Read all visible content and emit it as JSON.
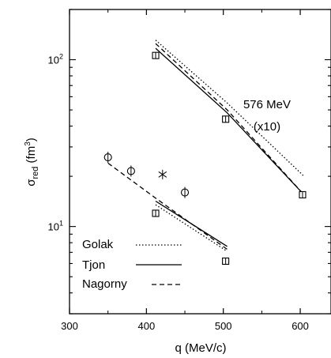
{
  "chart_data": {
    "type": "line",
    "title": "",
    "xlabel": "q (MeV/c)",
    "ylabel_main": "σ",
    "ylabel_sub": "red",
    "ylabel_unit": " (fm",
    "ylabel_power": "3",
    "ylabel_close": ")",
    "x_scale": "linear",
    "y_scale": "log",
    "xlim": [
      300,
      640
    ],
    "ylim": [
      3,
      200
    ],
    "x_ticks": [
      300,
      400,
      500,
      600
    ],
    "x_tick_labels": [
      "300",
      "400",
      "500",
      "600"
    ],
    "y_major_ticks": [
      10,
      100
    ],
    "y_tick_base": [
      "10",
      "10"
    ],
    "y_tick_exp": [
      "1",
      "2"
    ],
    "annotations": [
      "576 MeV",
      "(x10)"
    ],
    "grid": false,
    "legend_position": "bottom-left",
    "legend": [
      {
        "name": "Golak",
        "style": "dotted"
      },
      {
        "name": "Tjon",
        "style": "solid"
      },
      {
        "name": "Nagorny",
        "style": "dashed"
      }
    ],
    "series": [
      {
        "name": "Golak",
        "style": "dotted",
        "x": [
          412,
          505,
          605
        ],
        "y": [
          131,
          55,
          20
        ]
      },
      {
        "name": "Tjon",
        "style": "solid",
        "x": [
          412,
          505,
          605
        ],
        "y": [
          117,
          48,
          15.5
        ]
      },
      {
        "name": "Nagorny",
        "style": "dashed",
        "x": [
          412,
          505,
          605
        ],
        "y": [
          125,
          50,
          15.5
        ]
      },
      {
        "name": "Golak",
        "style": "dotted",
        "x": [
          412,
          505
        ],
        "y": [
          13.5,
          7.1
        ]
      },
      {
        "name": "Tjon",
        "style": "solid",
        "x": [
          412,
          505
        ],
        "y": [
          14.2,
          7.6
        ]
      },
      {
        "name": "Nagorny",
        "style": "dashed",
        "x": [
          350,
          412,
          505
        ],
        "y": [
          24,
          14.8,
          7.3
        ]
      }
    ],
    "points": [
      {
        "marker": "square",
        "x": [
          412,
          503,
          603
        ],
        "y": [
          106,
          44,
          15.5
        ]
      },
      {
        "marker": "square",
        "x": [
          412,
          503
        ],
        "y": [
          12,
          6.2
        ]
      },
      {
        "marker": "circle-bar",
        "x": [
          350,
          380,
          450
        ],
        "y": [
          26,
          21.5,
          16
        ]
      },
      {
        "marker": "asterisk",
        "x": [
          421
        ],
        "y": [
          20.5
        ]
      }
    ]
  }
}
